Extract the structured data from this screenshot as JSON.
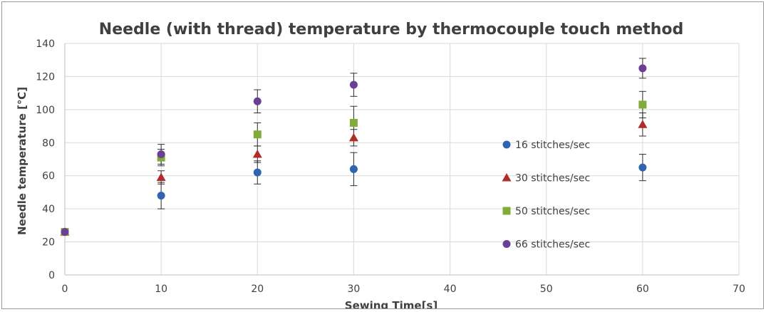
{
  "chart_data": {
    "type": "scatter",
    "title": "Needle (with thread)  temperature by thermocouple touch method",
    "xlabel": "Sewing Time[s]",
    "ylabel": "Needle temperature [℃]",
    "xlim": [
      0,
      70
    ],
    "ylim": [
      0,
      140
    ],
    "x_ticks": [
      0,
      10,
      20,
      30,
      40,
      50,
      60,
      70
    ],
    "y_ticks": [
      0,
      20,
      40,
      60,
      80,
      100,
      120,
      140
    ],
    "grid": true,
    "legend_position": "right",
    "series": [
      {
        "name": "16 stitches/sec",
        "marker": "circle",
        "color": "#2e64b0",
        "points": [
          {
            "x": 0,
            "y": 26,
            "err": 0
          },
          {
            "x": 10,
            "y": 48,
            "err": 8
          },
          {
            "x": 20,
            "y": 62,
            "err": 7
          },
          {
            "x": 30,
            "y": 64,
            "err": 10
          },
          {
            "x": 60,
            "y": 65,
            "err": 8
          }
        ]
      },
      {
        "name": "30 stitches/sec",
        "marker": "triangle",
        "color": "#b22b2b",
        "points": [
          {
            "x": 0,
            "y": 26,
            "err": 0
          },
          {
            "x": 10,
            "y": 59,
            "err": 4
          },
          {
            "x": 20,
            "y": 73,
            "err": 5
          },
          {
            "x": 30,
            "y": 83,
            "err": 5
          },
          {
            "x": 60,
            "y": 91,
            "err": 7
          }
        ]
      },
      {
        "name": "50 stitches/sec",
        "marker": "square",
        "color": "#80ad3a",
        "points": [
          {
            "x": 0,
            "y": 26,
            "err": 0
          },
          {
            "x": 10,
            "y": 71,
            "err": 5
          },
          {
            "x": 20,
            "y": 85,
            "err": 7
          },
          {
            "x": 30,
            "y": 92,
            "err": 10
          },
          {
            "x": 60,
            "y": 103,
            "err": 8
          }
        ]
      },
      {
        "name": "66 stitches/sec",
        "marker": "circle",
        "color": "#6a3f96",
        "points": [
          {
            "x": 0,
            "y": 26,
            "err": 0
          },
          {
            "x": 10,
            "y": 73,
            "err": 6
          },
          {
            "x": 20,
            "y": 105,
            "err": 7
          },
          {
            "x": 30,
            "y": 115,
            "err": 7
          },
          {
            "x": 60,
            "y": 125,
            "err": 6
          }
        ]
      }
    ]
  }
}
